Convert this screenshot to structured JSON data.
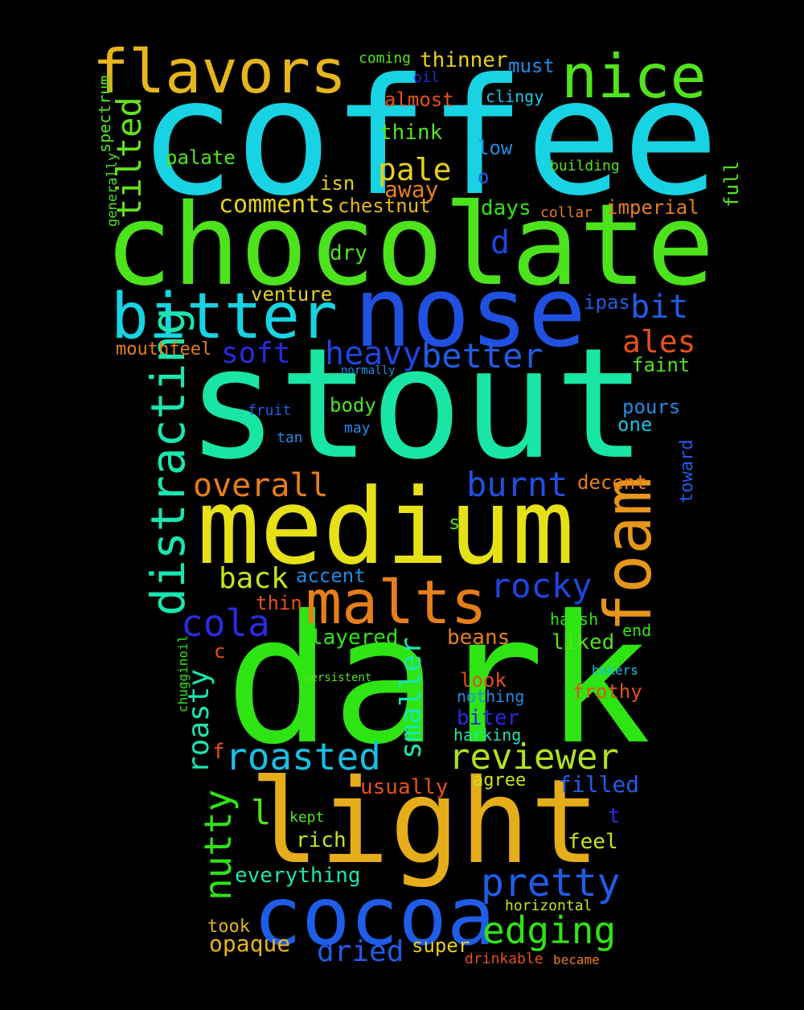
{
  "words": [
    {
      "text": "coffee",
      "color": "#17d3e3"
    },
    {
      "text": "chocolate",
      "color": "#4ce31c"
    },
    {
      "text": "stout",
      "color": "#19e6a4"
    },
    {
      "text": "dark",
      "color": "#2fe413"
    },
    {
      "text": "medium",
      "color": "#e6e017"
    },
    {
      "text": "nose",
      "color": "#1f50e0"
    },
    {
      "text": "light",
      "color": "#e6ad1a"
    },
    {
      "text": "cocoa",
      "color": "#1f5de8"
    },
    {
      "text": "flavors",
      "color": "#e6b51c"
    },
    {
      "text": "nice",
      "color": "#52e31c"
    },
    {
      "text": "bitter",
      "color": "#17d3e3"
    },
    {
      "text": "malts",
      "color": "#e67e1a"
    },
    {
      "text": "foam",
      "color": "#e6961a"
    },
    {
      "text": "distracting",
      "color": "#19e6b0"
    },
    {
      "text": "tilted",
      "color": "#63e31c"
    },
    {
      "text": "overall",
      "color": "#e67e1a"
    },
    {
      "text": "burnt",
      "color": "#1f50e0"
    },
    {
      "text": "rocky",
      "color": "#1f45e0"
    },
    {
      "text": "cola",
      "color": "#2a2ae0"
    },
    {
      "text": "roasted",
      "color": "#17c0e3"
    },
    {
      "text": "reviewer",
      "color": "#b0e31c"
    },
    {
      "text": "pretty",
      "color": "#1f5de8"
    },
    {
      "text": "edging",
      "color": "#2fe413"
    },
    {
      "text": "nutty",
      "color": "#2fe413"
    },
    {
      "text": "heavy",
      "color": "#1f45e0"
    },
    {
      "text": "better",
      "color": "#1f5de8"
    },
    {
      "text": "soft",
      "color": "#2a2ae0"
    },
    {
      "text": "bit",
      "color": "#1f5de8"
    },
    {
      "text": "ales",
      "color": "#e6501a"
    },
    {
      "text": "pale",
      "color": "#e6d01c"
    },
    {
      "text": "comments",
      "color": "#e6d01c"
    },
    {
      "text": "chestnut",
      "color": "#e6b51c"
    },
    {
      "text": "back",
      "color": "#c8e31c"
    },
    {
      "text": "accent",
      "color": "#1f8ce6"
    },
    {
      "text": "roasty",
      "color": "#19e6b0"
    },
    {
      "text": "smaller",
      "color": "#19e6b0"
    },
    {
      "text": "dried",
      "color": "#1f5de8"
    },
    {
      "text": "opaque",
      "color": "#e6b51c"
    },
    {
      "text": "d",
      "color": "#1f45e0"
    },
    {
      "text": "thinner",
      "color": "#e6d01c"
    },
    {
      "text": "away",
      "color": "#e67e1a"
    },
    {
      "text": "think",
      "color": "#52e31c"
    },
    {
      "text": "must",
      "color": "#1f8ce6"
    },
    {
      "text": "almost",
      "color": "#e6501a"
    },
    {
      "text": "clingy",
      "color": "#17c0e3"
    },
    {
      "text": "low",
      "color": "#1f8ce6"
    },
    {
      "text": "o",
      "color": "#1f5de8"
    },
    {
      "text": "building",
      "color": "#52e31c"
    },
    {
      "text": "full",
      "color": "#52e31c"
    },
    {
      "text": "days",
      "color": "#2fe413"
    },
    {
      "text": "imperial",
      "color": "#e67e1a"
    },
    {
      "text": "collar",
      "color": "#e67e1a"
    },
    {
      "text": "isn",
      "color": "#e6d01c"
    },
    {
      "text": "palate",
      "color": "#52e31c"
    },
    {
      "text": "dry",
      "color": "#52e31c"
    },
    {
      "text": "venture",
      "color": "#e6d01c"
    },
    {
      "text": "ipas",
      "color": "#1f5de8"
    },
    {
      "text": "mouthfeel",
      "color": "#e67e1a"
    },
    {
      "text": "faint",
      "color": "#52e31c"
    },
    {
      "text": "normally",
      "color": "#1f8ce6"
    },
    {
      "text": "body",
      "color": "#52e31c"
    },
    {
      "text": "fruit",
      "color": "#1f5de8"
    },
    {
      "text": "may",
      "color": "#1f8ce6"
    },
    {
      "text": "tan",
      "color": "#1f8ce6"
    },
    {
      "text": "pours",
      "color": "#1f8ce6"
    },
    {
      "text": "one",
      "color": "#17c0e3"
    },
    {
      "text": "toward",
      "color": "#1f5de8"
    },
    {
      "text": "decent",
      "color": "#e67e1a"
    },
    {
      "text": "s",
      "color": "#52e31c"
    },
    {
      "text": "thin",
      "color": "#e6501a"
    },
    {
      "text": "harsh",
      "color": "#2fe413"
    },
    {
      "text": "end",
      "color": "#2fe413"
    },
    {
      "text": "layered",
      "color": "#2fe413"
    },
    {
      "text": "beans",
      "color": "#e67e1a"
    },
    {
      "text": "liked",
      "color": "#52e31c"
    },
    {
      "text": "c",
      "color": "#e6501a"
    },
    {
      "text": "persistent",
      "color": "#52e31c"
    },
    {
      "text": "look",
      "color": "#e6501a"
    },
    {
      "text": "bakers",
      "color": "#17c0e3"
    },
    {
      "text": "frothy",
      "color": "#e6501a"
    },
    {
      "text": "nothing",
      "color": "#1f8ce6"
    },
    {
      "text": "biter",
      "color": "#2a2ae0"
    },
    {
      "text": "harking",
      "color": "#19e6b0"
    },
    {
      "text": "chugginoil",
      "color": "#2fe413"
    },
    {
      "text": "f",
      "color": "#e6501a"
    },
    {
      "text": "usually",
      "color": "#e6501a"
    },
    {
      "text": "agree",
      "color": "#c8e31c"
    },
    {
      "text": "filled",
      "color": "#1f5de8"
    },
    {
      "text": "l",
      "color": "#52e31c"
    },
    {
      "text": "kept",
      "color": "#52e31c"
    },
    {
      "text": "t",
      "color": "#2a2ae0"
    },
    {
      "text": "rich",
      "color": "#c8e31c"
    },
    {
      "text": "feel",
      "color": "#c8e31c"
    },
    {
      "text": "everything",
      "color": "#19e6b0"
    },
    {
      "text": "took",
      "color": "#e6b51c"
    },
    {
      "text": "horizontal",
      "color": "#c8e31c"
    },
    {
      "text": "super",
      "color": "#e6d01c"
    },
    {
      "text": "drinkable",
      "color": "#e6501a"
    },
    {
      "text": "became",
      "color": "#e67e1a"
    },
    {
      "text": "coming",
      "color": "#52e31c"
    },
    {
      "text": "oil",
      "color": "#2a2ae0"
    },
    {
      "text": "spectrum",
      "color": "#52e31c"
    },
    {
      "text": "generally",
      "color": "#52e31c"
    }
  ]
}
